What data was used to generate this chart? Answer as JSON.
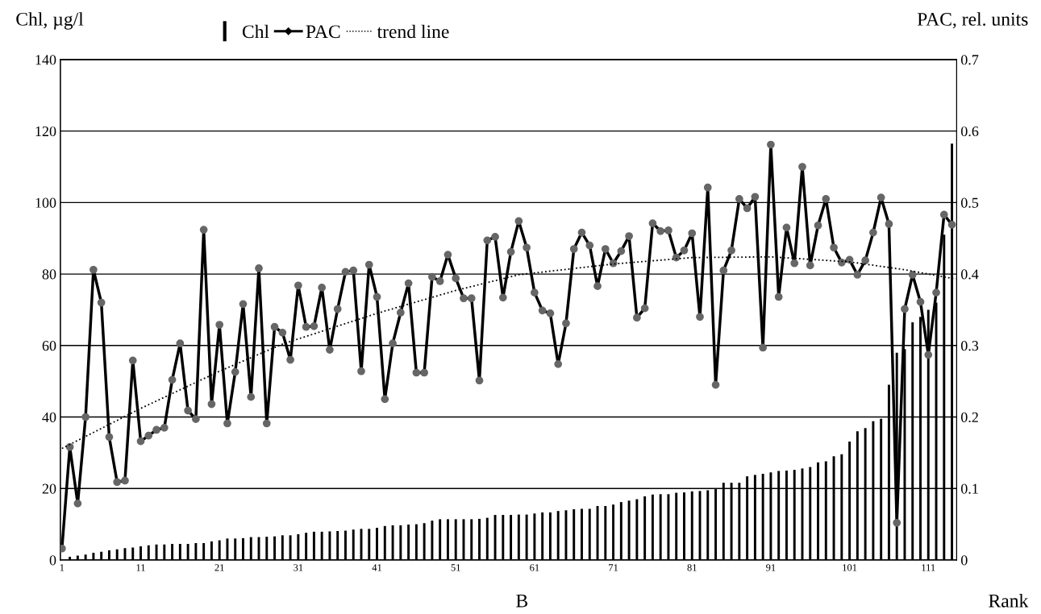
{
  "chart_data": {
    "type": "bar",
    "ylabel": "Chl, µg/l",
    "y2label": "PAC, rel. units",
    "xlabel": "Rank",
    "annotations": [
      "B"
    ],
    "x": [
      1,
      2,
      3,
      4,
      5,
      6,
      7,
      8,
      9,
      10,
      11,
      12,
      13,
      14,
      15,
      16,
      17,
      18,
      19,
      20,
      21,
      22,
      23,
      24,
      25,
      26,
      27,
      28,
      29,
      30,
      31,
      32,
      33,
      34,
      35,
      36,
      37,
      38,
      39,
      40,
      41,
      42,
      43,
      44,
      45,
      46,
      47,
      48,
      49,
      50,
      51,
      52,
      53,
      54,
      55,
      56,
      57,
      58,
      59,
      60,
      61,
      62,
      63,
      64,
      65,
      66,
      67,
      68,
      69,
      70,
      71,
      72,
      73,
      74,
      75,
      76,
      77,
      78,
      79,
      80,
      81,
      82,
      83,
      84,
      85,
      86,
      87,
      88,
      89,
      90,
      91,
      92,
      93,
      94,
      95,
      96,
      97,
      98,
      99,
      100,
      101,
      102,
      103,
      104,
      105,
      106,
      107,
      108,
      109,
      110,
      111,
      112,
      113,
      114
    ],
    "series": [
      {
        "name": "Chl",
        "color": "#000000",
        "values": [
          null,
          0.9,
          1.2,
          1.5,
          2,
          2.3,
          2.7,
          3,
          3.3,
          3.5,
          3.8,
          4.1,
          4.3,
          4.3,
          4.5,
          4.5,
          4.5,
          4.7,
          4.7,
          5.2,
          5.5,
          6,
          6,
          6.1,
          6.4,
          6.4,
          6.5,
          6.6,
          6.9,
          6.9,
          7.2,
          7.6,
          7.9,
          7.9,
          8,
          8.1,
          8.2,
          8.5,
          8.7,
          8.7,
          9,
          9.5,
          9.7,
          9.7,
          9.9,
          10,
          10.3,
          11,
          11.4,
          11.4,
          11.4,
          11.4,
          11.4,
          11.5,
          11.8,
          12.6,
          12.6,
          12.6,
          12.7,
          12.7,
          13,
          13.3,
          13.3,
          13.7,
          13.9,
          14.2,
          14.3,
          14.3,
          15.1,
          15.1,
          15.5,
          16.2,
          16.6,
          17,
          17.8,
          18.3,
          18.4,
          18.4,
          18.8,
          18.9,
          19.2,
          19.3,
          19.5,
          19.8,
          21.6,
          21.6,
          21.6,
          23.4,
          23.8,
          24.1,
          24.5,
          24.9,
          25,
          25.2,
          25.6,
          26,
          27.3,
          27.6,
          29,
          29.6,
          33.1,
          36,
          36.9,
          38.8,
          39.5,
          49,
          58,
          59,
          66.5,
          68,
          70,
          72,
          91,
          116.5
        ]
      },
      {
        "name": "PAC",
        "type": "line",
        "axis": "y2",
        "color": "#000000",
        "marker": "circle",
        "line_style": "solid",
        "values": [
          0.016,
          0.158,
          0.079,
          0.2,
          0.406,
          0.36,
          0.172,
          0.109,
          0.111,
          0.279,
          0.166,
          0.174,
          0.182,
          0.185,
          0.252,
          0.303,
          0.209,
          0.197,
          0.462,
          0.218,
          0.329,
          0.191,
          0.263,
          0.358,
          0.228,
          0.408,
          0.191,
          0.326,
          0.318,
          0.28,
          0.384,
          0.326,
          0.327,
          0.381,
          0.294,
          0.351,
          0.403,
          0.405,
          0.264,
          0.413,
          0.368,
          0.225,
          0.303,
          0.346,
          0.387,
          0.262,
          0.262,
          0.396,
          0.39,
          0.427,
          0.394,
          0.366,
          0.366,
          0.251,
          0.447,
          0.452,
          0.367,
          0.431,
          0.474,
          0.437,
          0.374,
          0.349,
          0.345,
          0.274,
          0.331,
          0.435,
          0.458,
          0.44,
          0.383,
          0.435,
          0.415,
          0.432,
          0.453,
          0.339,
          0.352,
          0.471,
          0.46,
          0.461,
          0.423,
          0.433,
          0.457,
          0.34,
          0.521,
          0.245,
          0.405,
          0.433,
          0.505,
          0.492,
          0.508,
          0.297,
          0.581,
          0.368,
          0.465,
          0.415,
          0.55,
          0.412,
          0.468,
          0.505,
          0.437,
          0.416,
          0.42,
          0.399,
          0.419,
          0.458,
          0.507,
          0.47,
          0.052,
          0.351,
          0.399,
          0.361,
          0.287,
          0.374,
          0.483,
          0.469
        ]
      },
      {
        "name": "trend line",
        "type": "line",
        "axis": "y2",
        "color": "#000000",
        "marker": "none",
        "line_style": "dotted",
        "x": [
          1,
          11,
          21,
          29,
          41,
          51,
          59,
          71,
          81,
          91,
          101,
          108,
          114.5
        ],
        "values": [
          0.156,
          0.212,
          0.264,
          0.302,
          0.345,
          0.377,
          0.399,
          0.414,
          0.423,
          0.424,
          0.417,
          0.406,
          0.393
        ]
      }
    ],
    "xlim": [
      0.8,
      114.6
    ],
    "xticks": [
      1,
      11,
      21,
      31,
      41,
      51,
      61,
      71,
      81,
      91,
      101,
      111
    ],
    "ylim": [
      0,
      140
    ],
    "yticks": [
      0,
      20,
      40,
      60,
      80,
      100,
      120,
      140
    ],
    "y2lim": [
      0,
      0.7
    ],
    "y2ticks": [
      0,
      0.1,
      0.2,
      0.3,
      0.4,
      0.5,
      0.6,
      0.7
    ],
    "grid": "y",
    "legend": "top"
  }
}
